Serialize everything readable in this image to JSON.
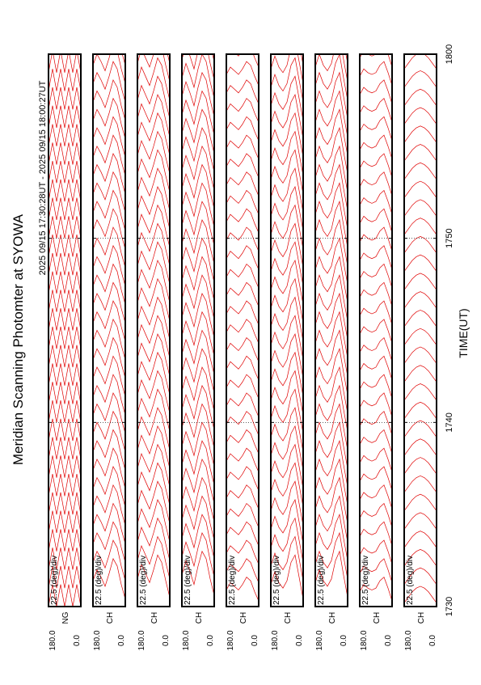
{
  "chart_data": {
    "type": "stacked-profiles",
    "title": "Meridian Scanning Photomter at SYOWA",
    "subtitle": "2025 09/15 17:30:28UT - 2025 09/15 18:00:27UT",
    "xlabel": "TIME(UT)",
    "div_label": "22.5 (deg)/div",
    "color": "#e00000",
    "angles": [
      0,
      22.5,
      45,
      67.5,
      90,
      112.5,
      135,
      157.5,
      180
    ],
    "angle_lim": [
      0,
      180
    ],
    "angle_ticks": [
      {
        "value": 180,
        "label": "180.0"
      },
      {
        "value": 0,
        "label": "0.0"
      }
    ],
    "tlim": [
      30,
      60
    ],
    "tticks": [
      {
        "value": 30,
        "label": "1730"
      },
      {
        "value": 40,
        "label": "1740"
      },
      {
        "value": 50,
        "label": "1750"
      },
      {
        "value": 60,
        "label": "1800"
      }
    ],
    "scan_times": [
      30,
      31,
      32,
      33,
      34,
      35,
      36,
      37,
      38,
      39,
      40,
      41,
      42,
      43,
      44,
      45,
      46,
      47,
      48,
      49,
      50,
      51,
      52,
      53,
      54,
      55,
      56,
      57,
      58,
      59
    ],
    "panels": [
      {
        "label": "NG",
        "profile": [
          0,
          1.2,
          0,
          1.2,
          0,
          1.2,
          0,
          1.2,
          0
        ]
      },
      {
        "label": "CH",
        "profile": [
          0.4,
          1.2,
          2.2,
          2.6,
          1.8,
          1.1,
          1.6,
          2.0,
          1.4
        ]
      },
      {
        "label": "CH",
        "profile": [
          0.5,
          1.4,
          2.4,
          2.8,
          2.0,
          1.3,
          1.8,
          2.3,
          1.5
        ]
      },
      {
        "label": "CH",
        "profile": [
          0.6,
          1.5,
          2.6,
          3.0,
          2.2,
          1.2,
          1.9,
          2.5,
          1.7
        ]
      },
      {
        "label": "CH",
        "profile": [
          0.3,
          0.8,
          1.4,
          1.6,
          1.2,
          0.9,
          1.1,
          1.3,
          0.9
        ]
      },
      {
        "label": "CH",
        "profile": [
          0.4,
          1.6,
          2.8,
          2.4,
          1.4,
          1.0,
          1.3,
          1.9,
          1.2
        ]
      },
      {
        "label": "CH",
        "profile": [
          0.5,
          1.7,
          3.0,
          2.5,
          1.5,
          1.1,
          1.4,
          2.0,
          1.3
        ]
      },
      {
        "label": "CH",
        "profile": [
          0.3,
          1.0,
          1.6,
          1.4,
          1.0,
          0.9,
          1.0,
          1.2,
          0.8
        ]
      },
      {
        "label": "CH",
        "profile": [
          0.2,
          0.5,
          0.8,
          1.0,
          1.1,
          1.0,
          0.8,
          0.5,
          0.2
        ]
      }
    ]
  }
}
